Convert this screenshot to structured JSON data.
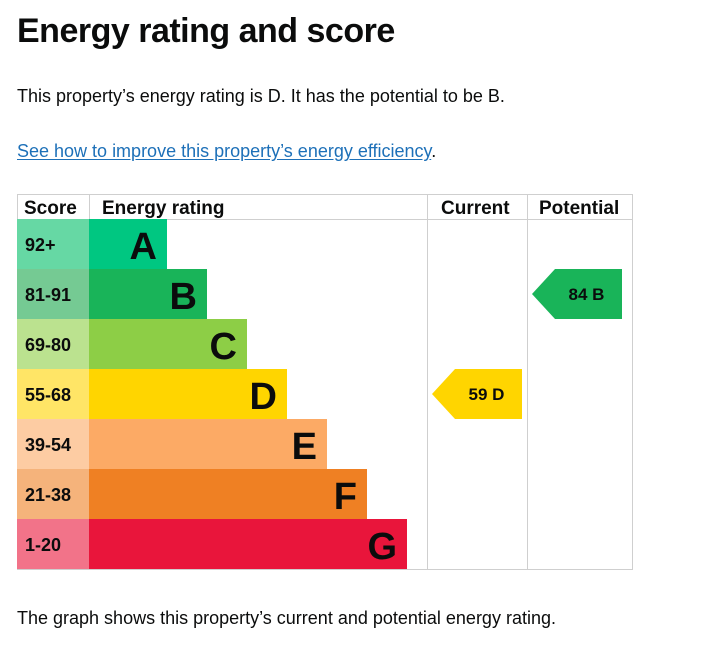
{
  "page": {
    "title": "Energy rating and score",
    "intro": "This property’s energy rating is D. It has the potential to be B.",
    "link_text": "See how to improve this property’s energy efficiency",
    "link_suffix": ".",
    "footer": "The graph shows this property’s current and potential energy rating."
  },
  "chart_data": {
    "type": "table",
    "headers": {
      "score": "Score",
      "rating": "Energy rating",
      "current": "Current",
      "potential": "Potential"
    },
    "bands": [
      {
        "band": "A",
        "range": "92+",
        "color": "#00c781",
        "score_bg": "#66d8a4"
      },
      {
        "band": "B",
        "range": "81-91",
        "color": "#19b459",
        "score_bg": "#75ca93"
      },
      {
        "band": "C",
        "range": "69-80",
        "color": "#8dce46",
        "score_bg": "#bbe28f"
      },
      {
        "band": "D",
        "range": "55-68",
        "color": "#ffd500",
        "score_bg": "#ffe566"
      },
      {
        "band": "E",
        "range": "39-54",
        "color": "#fcaa65",
        "score_bg": "#fdcca3"
      },
      {
        "band": "F",
        "range": "21-38",
        "color": "#ef8023",
        "score_bg": "#f5b37b"
      },
      {
        "band": "G",
        "range": "1-20",
        "color": "#e9153b",
        "score_bg": "#f27389"
      }
    ],
    "current": {
      "score": 59,
      "band": "D",
      "label": "59 D",
      "color": "#ffd500"
    },
    "potential": {
      "score": 84,
      "band": "B",
      "label": "84 B",
      "color": "#19b459"
    }
  }
}
